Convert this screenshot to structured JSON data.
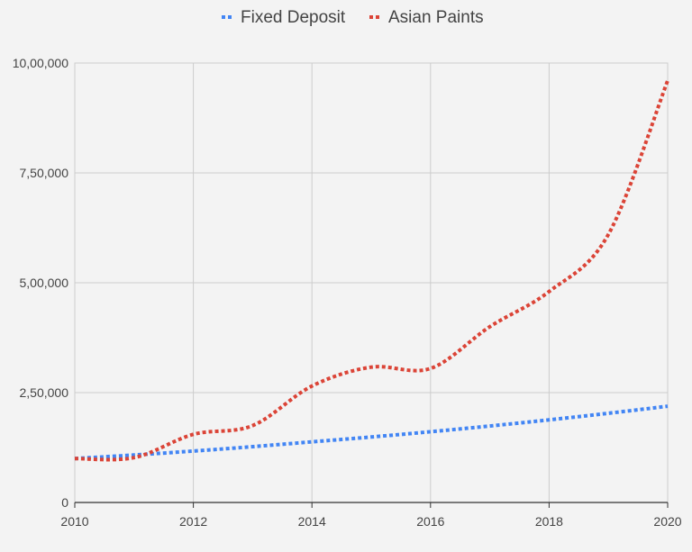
{
  "chart_data": {
    "type": "line",
    "title": "",
    "xlabel": "",
    "ylabel": "",
    "x": [
      2010,
      2011,
      2012,
      2013,
      2014,
      2015,
      2016,
      2017,
      2018,
      2019,
      2020
    ],
    "series": [
      {
        "name": "Fixed Deposit",
        "color": "#4285f4",
        "values": [
          100000,
          108000,
          117000,
          127000,
          138000,
          149000,
          161000,
          174000,
          188000,
          203000,
          219000
        ]
      },
      {
        "name": "Asian Paints",
        "color": "#db4437",
        "values": [
          100000,
          102000,
          155000,
          175000,
          265000,
          308000,
          305000,
          400000,
          480000,
          610000,
          960000
        ]
      }
    ],
    "xlim": [
      2010,
      2020
    ],
    "ylim": [
      0,
      1000000
    ],
    "x_ticks": [
      2010,
      2012,
      2014,
      2016,
      2018,
      2020
    ],
    "y_ticks": [
      0,
      250000,
      500000,
      750000,
      1000000
    ],
    "x_tick_labels": [
      "2010",
      "2012",
      "2014",
      "2016",
      "2018",
      "2020"
    ],
    "y_tick_labels": [
      "0",
      "2,50,000",
      "5,00,000",
      "7,50,000",
      "10,00,000"
    ],
    "grid": true,
    "legend_position": "top",
    "line_style": "dotted",
    "colors": {
      "background": "#f3f3f3",
      "grid": "#cccccc",
      "axis": "#333333",
      "text": "#444444"
    }
  }
}
